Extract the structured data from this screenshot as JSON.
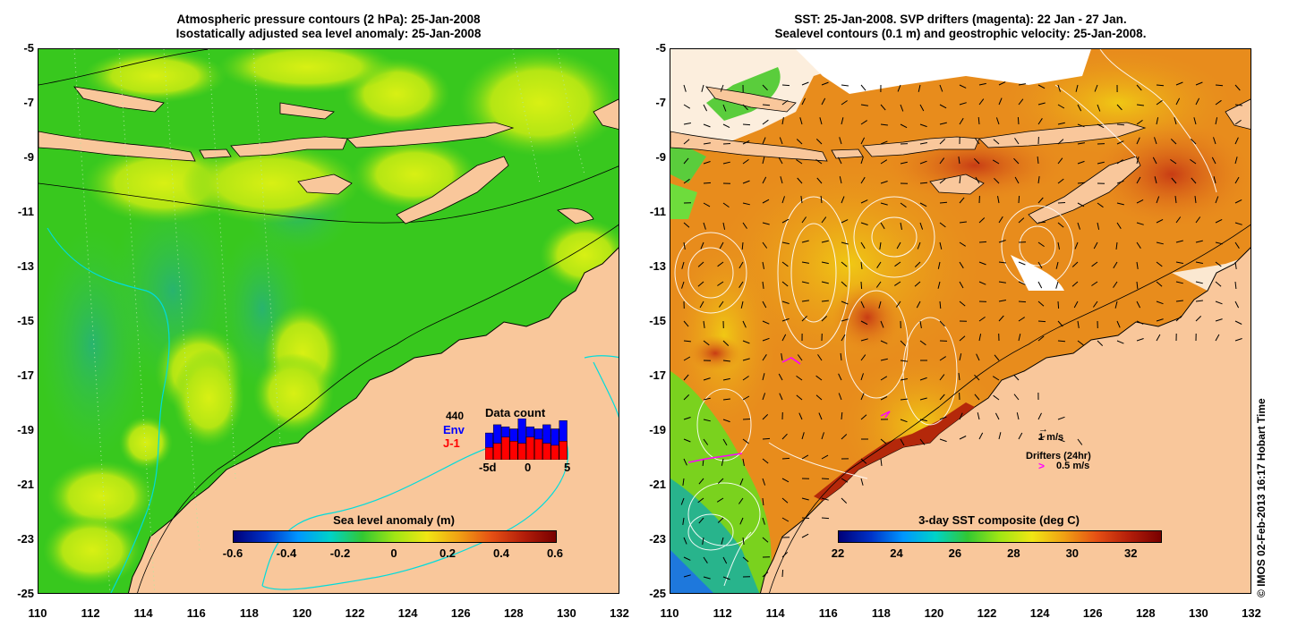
{
  "left_panel": {
    "title_line1": "Atmospheric pressure contours (2 hPa): 25-Jan-2008",
    "title_line2": "Isostatically adjusted sea level anomaly: 25-Jan-2008",
    "colorbar": {
      "label": "Sea level anomaly (m)",
      "ticks": [
        "-0.6",
        "-0.4",
        "-0.2",
        "0",
        "0.2",
        "0.4",
        "0.6"
      ],
      "range": [
        -0.6,
        0.6
      ]
    },
    "data_count": {
      "title": "Data count",
      "count": "440",
      "series": [
        "Env",
        "J-1"
      ],
      "series_colors": [
        "#0000ff",
        "#ff0000"
      ],
      "axis_labels": [
        "-5d",
        "0",
        "5"
      ],
      "env_values": [
        0.65,
        0.85,
        0.8,
        0.75,
        1.0,
        0.8,
        0.75,
        0.85,
        0.75,
        0.95
      ],
      "j1_values": [
        0.3,
        0.4,
        0.55,
        0.45,
        0.4,
        0.55,
        0.5,
        0.4,
        0.35,
        0.45
      ]
    }
  },
  "right_panel": {
    "title_line1": "SST: 25-Jan-2008. SVP drifters (magenta): 22 Jan - 27 Jan.",
    "title_line2": "Sealevel contours (0.1 m) and geostrophic velocity: 25-Jan-2008.",
    "colorbar": {
      "label": "3-day SST composite (deg C)",
      "ticks": [
        "22",
        "24",
        "26",
        "28",
        "30",
        "32"
      ],
      "range": [
        22,
        33
      ]
    },
    "velocity_scale": "1 m/s",
    "drifters_label": "Drifters (24hr)",
    "drifters_scale": "0.5 m/s"
  },
  "axes": {
    "y_ticks": [
      "-5",
      "-7",
      "-9",
      "-11",
      "-13",
      "-15",
      "-17",
      "-19",
      "-21",
      "-23",
      "-25"
    ],
    "x_ticks": [
      "110",
      "112",
      "114",
      "116",
      "118",
      "120",
      "122",
      "124",
      "126",
      "128",
      "130",
      "132"
    ]
  },
  "credit": "© IMOS 02-Feb-2013 16:17 Hobart Time",
  "colors": {
    "land": "#f9c79b",
    "sla_green": "#35c81e",
    "sla_yellow": "#c8f014",
    "sst_orange": "#e8841c",
    "shelf_contour": "#00e0e0",
    "drifter": "#ff00ff"
  }
}
